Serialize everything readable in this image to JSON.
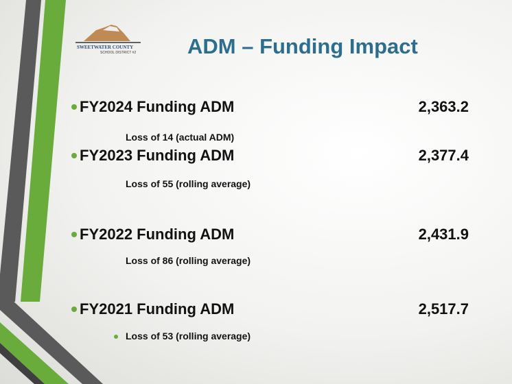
{
  "logo": {
    "name": "SWEETWATER COUNTY",
    "subname": "SCHOOL DISTRICT #2"
  },
  "title": "ADM – Funding Impact",
  "items": [
    {
      "label": "FY2024 Funding ADM",
      "value": "2,363.2",
      "note": "Loss of 14 (actual ADM)"
    },
    {
      "label": "FY2023 Funding ADM",
      "value": "2,377.4",
      "note": "Loss of 55 (rolling average)"
    },
    {
      "label": "FY2022 Funding ADM",
      "value": "2,431.9",
      "note": "Loss of 86 (rolling average)"
    },
    {
      "label": "FY2021 Funding ADM",
      "value": "2,517.7",
      "note": "Loss of 53 (rolling average)"
    }
  ]
}
